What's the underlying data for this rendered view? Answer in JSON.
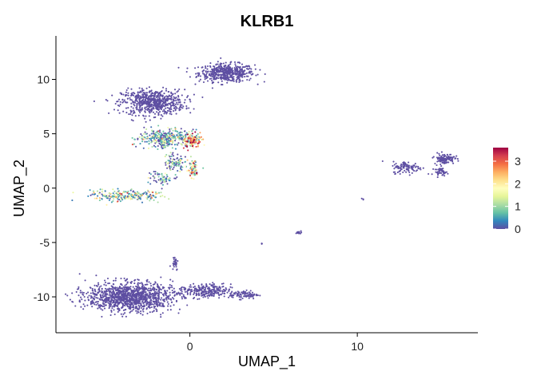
{
  "chart_data": {
    "type": "scatter",
    "title": "KLRB1",
    "xlabel": "UMAP_1",
    "ylabel": "UMAP_2",
    "xlim": [
      -8.0,
      17.2
    ],
    "ylim": [
      -13.3,
      14.0
    ],
    "x_ticks": [
      0,
      10
    ],
    "x_tick_labels": [
      "0",
      "10"
    ],
    "y_ticks": [
      -10,
      -5,
      0,
      5,
      10
    ],
    "y_tick_labels": [
      "-10",
      "-5",
      "0",
      "5",
      "10"
    ],
    "grid": false,
    "legend": {
      "position": "right",
      "min": 0,
      "max": 3.6,
      "ticks": [
        0,
        1,
        2,
        3
      ],
      "tick_labels": [
        "0",
        "1",
        "2",
        "3"
      ],
      "colors": [
        "#5E4FA2",
        "#3288BD",
        "#66C2A5",
        "#ABDDA4",
        "#E6F598",
        "#FFFFBF",
        "#FEE08B",
        "#FDAE61",
        "#F46D43",
        "#D53E4F",
        "#9E0142"
      ]
    },
    "clusters": [
      {
        "center": [
          2.2,
          10.6
        ],
        "spread": [
          1.5,
          0.75
        ],
        "n": 500,
        "expr": 0
      },
      {
        "center": [
          -2.2,
          7.9
        ],
        "spread": [
          1.7,
          1.05
        ],
        "n": 650,
        "expr": 0
      },
      {
        "center": [
          -1.6,
          4.6
        ],
        "spread": [
          1.3,
          0.7
        ],
        "n": 320,
        "expr": 0.6
      },
      {
        "center": [
          0.1,
          4.4
        ],
        "spread": [
          0.5,
          0.6
        ],
        "n": 160,
        "expr": 2.5
      },
      {
        "center": [
          -0.9,
          2.3
        ],
        "spread": [
          0.6,
          0.7
        ],
        "n": 90,
        "expr": 0.3
      },
      {
        "center": [
          0.2,
          1.8
        ],
        "spread": [
          0.3,
          0.8
        ],
        "n": 80,
        "expr": 1.8
      },
      {
        "center": [
          -3.8,
          -0.7
        ],
        "spread": [
          1.9,
          0.45
        ],
        "n": 220,
        "expr": 1.1
      },
      {
        "center": [
          -1.7,
          0.9
        ],
        "spread": [
          0.8,
          0.6
        ],
        "n": 60,
        "expr": 0.4
      },
      {
        "center": [
          -3.6,
          -10.0
        ],
        "spread": [
          2.3,
          1.2
        ],
        "n": 1200,
        "expr": 0
      },
      {
        "center": [
          0.9,
          -9.5
        ],
        "spread": [
          1.4,
          0.6
        ],
        "n": 260,
        "expr": 0
      },
      {
        "center": [
          3.2,
          -9.8
        ],
        "spread": [
          0.8,
          0.35
        ],
        "n": 90,
        "expr": 0
      },
      {
        "center": [
          -0.9,
          -6.8
        ],
        "spread": [
          0.18,
          0.7
        ],
        "n": 30,
        "expr": 0
      },
      {
        "center": [
          13.0,
          1.9
        ],
        "spread": [
          0.8,
          0.5
        ],
        "n": 110,
        "expr": 0
      },
      {
        "center": [
          15.2,
          2.7
        ],
        "spread": [
          0.55,
          0.45
        ],
        "n": 120,
        "expr": 0
      },
      {
        "center": [
          15.0,
          1.5
        ],
        "spread": [
          0.35,
          0.3
        ],
        "n": 40,
        "expr": 0
      },
      {
        "center": [
          6.5,
          -4.1
        ],
        "spread": [
          0.15,
          0.1
        ],
        "n": 16,
        "expr": 0
      },
      {
        "center": [
          4.3,
          -5.1
        ],
        "spread": [
          0.05,
          0.05
        ],
        "n": 3,
        "expr": 0
      },
      {
        "center": [
          10.3,
          -1.0
        ],
        "spread": [
          0.08,
          0.08
        ],
        "n": 3,
        "expr": 0
      }
    ]
  }
}
